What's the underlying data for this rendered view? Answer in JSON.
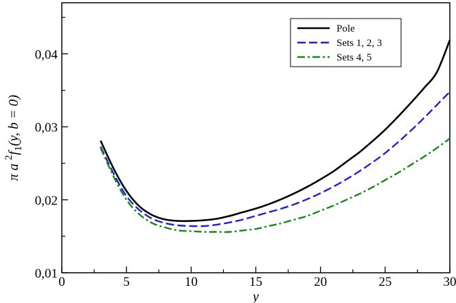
{
  "chart_data": {
    "type": "line",
    "title": "",
    "xlabel": "y",
    "ylabel": "π a ²f₁(y, b = 0)",
    "ylabel_parts": {
      "pre": "π a ",
      "sup": "2",
      "f": "f",
      "sub": "1",
      "post": "(y, b = 0)"
    },
    "xlim": [
      0,
      30
    ],
    "ylim": [
      0.01,
      0.047
    ],
    "xticks": [
      "0",
      "5",
      "10",
      "15",
      "20",
      "25",
      "30"
    ],
    "xtick_values": [
      0,
      5,
      10,
      15,
      20,
      25,
      30
    ],
    "yticks": [
      "0,01",
      "0,02",
      "0,03",
      "0,04"
    ],
    "ytick_values": [
      0.01,
      0.02,
      0.03,
      0.04
    ],
    "grid": false,
    "legend_position": "top-right",
    "series": [
      {
        "name": "Pole",
        "color": "#000000",
        "style": "solid",
        "x": [
          3,
          4,
          5,
          6,
          7,
          8,
          9,
          10,
          11,
          12,
          13,
          14,
          15,
          16,
          17,
          18,
          19,
          20,
          21,
          22,
          23,
          24,
          25,
          26,
          27,
          28,
          29,
          30
        ],
        "y": [
          0.0281,
          0.0243,
          0.0212,
          0.0191,
          0.0179,
          0.0173,
          0.0171,
          0.0171,
          0.0172,
          0.0174,
          0.0178,
          0.0183,
          0.0188,
          0.0194,
          0.0201,
          0.0209,
          0.0218,
          0.0228,
          0.0239,
          0.0252,
          0.0265,
          0.028,
          0.0296,
          0.0314,
          0.0333,
          0.0353,
          0.0375,
          0.0419
        ]
      },
      {
        "name": "Sets 1, 2, 3",
        "color": "#1f1fd6",
        "style": "dashed",
        "x": [
          3,
          4,
          5,
          6,
          7,
          8,
          9,
          10,
          11,
          12,
          13,
          14,
          15,
          16,
          17,
          18,
          19,
          20,
          21,
          22,
          23,
          24,
          25,
          26,
          27,
          28,
          29,
          30
        ],
        "y": [
          0.0273,
          0.0236,
          0.0205,
          0.0186,
          0.0174,
          0.0168,
          0.0165,
          0.0164,
          0.0164,
          0.0166,
          0.0169,
          0.0173,
          0.0178,
          0.0183,
          0.0188,
          0.0194,
          0.0201,
          0.0209,
          0.0218,
          0.0228,
          0.0239,
          0.0251,
          0.0264,
          0.0279,
          0.0295,
          0.0312,
          0.033,
          0.0348
        ]
      },
      {
        "name": "Sets 4, 5",
        "color": "#138a13",
        "style": "dashdot",
        "x": [
          3,
          4,
          5,
          6,
          7,
          8,
          9,
          10,
          11,
          12,
          13,
          14,
          15,
          16,
          17,
          18,
          19,
          20,
          21,
          22,
          23,
          24,
          25,
          26,
          27,
          28,
          29,
          30
        ],
        "y": [
          0.0271,
          0.0232,
          0.02,
          0.018,
          0.0168,
          0.0162,
          0.0158,
          0.0157,
          0.0156,
          0.0156,
          0.0156,
          0.0158,
          0.016,
          0.0164,
          0.0168,
          0.0173,
          0.0178,
          0.0185,
          0.0192,
          0.02,
          0.0208,
          0.0217,
          0.0227,
          0.0237,
          0.0248,
          0.0259,
          0.0271,
          0.0284
        ]
      }
    ]
  }
}
